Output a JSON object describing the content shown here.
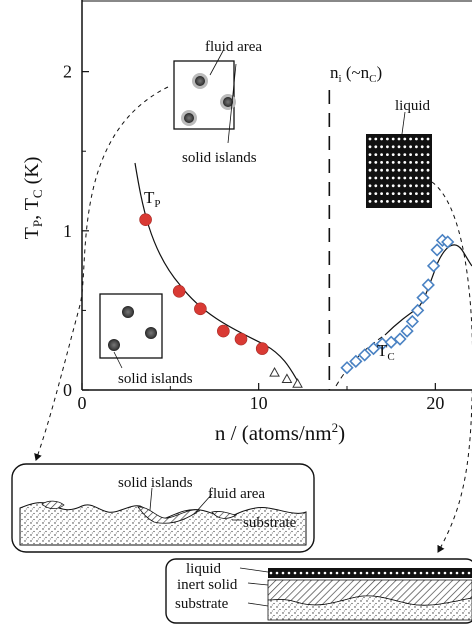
{
  "chart_data": {
    "type": "scatter",
    "xlabel": "n / (atoms/nm",
    "xlabel_sup": "2",
    "xlabel_close": ")",
    "ylabel": "T",
    "ylabel_p": "P",
    "ylabel_sep": ", T",
    "ylabel_c": "C",
    "ylabel_unit": " (K)",
    "xlim": [
      0,
      21
    ],
    "ylim": [
      0,
      2.45
    ],
    "xticks": [
      0,
      10,
      20
    ],
    "yticks": [
      0,
      1,
      2
    ],
    "xtick_labels": [
      "0",
      "10",
      "20"
    ],
    "ytick_labels": [
      "0",
      "1",
      "2"
    ],
    "series": [
      {
        "label": "T",
        "label_sub": "P",
        "marker": "filled-circle",
        "color": "#d93a34",
        "x": [
          3.6,
          5.5,
          6.7,
          8.0,
          9.0,
          10.2
        ],
        "y": [
          1.07,
          0.62,
          0.51,
          0.37,
          0.32,
          0.26
        ]
      },
      {
        "marker": "open-triangle",
        "color": "#333333",
        "x": [
          10.9,
          11.6,
          12.2
        ],
        "y": [
          0.11,
          0.07,
          0.04
        ]
      },
      {
        "label": "T",
        "label_sub": "C",
        "marker": "open-diamond",
        "color": "#4a82c3",
        "x": [
          15.0,
          15.5,
          16.0,
          16.5,
          17.0,
          17.5,
          18.0,
          18.4,
          18.7,
          19.0,
          19.3,
          19.6,
          19.9,
          20.1,
          20.4,
          20.7
        ],
        "y": [
          0.14,
          0.18,
          0.22,
          0.26,
          0.29,
          0.3,
          0.32,
          0.37,
          0.43,
          0.5,
          0.58,
          0.66,
          0.78,
          0.88,
          0.94,
          0.93
        ]
      }
    ],
    "vline_x": 14.0,
    "vline_label": "n",
    "vline_label_sub": "i",
    "vline_label_tail": " (~n",
    "vline_label_sub2": "C",
    "vline_label_close": ")"
  },
  "insets": {
    "fluid_area": "fluid area",
    "solid_islands_top": "solid islands",
    "liquid": "liquid",
    "solid_islands_bottom": "solid islands"
  },
  "bottom_left": {
    "solid_islands": "solid islands",
    "fluid_area": "fluid area",
    "substrate": "substrate"
  },
  "bottom_right": {
    "liquid": "liquid",
    "inert_solid": "inert solid",
    "substrate": "substrate"
  },
  "colors": {
    "tp": "#d93a34",
    "tc": "#4a82c3"
  }
}
